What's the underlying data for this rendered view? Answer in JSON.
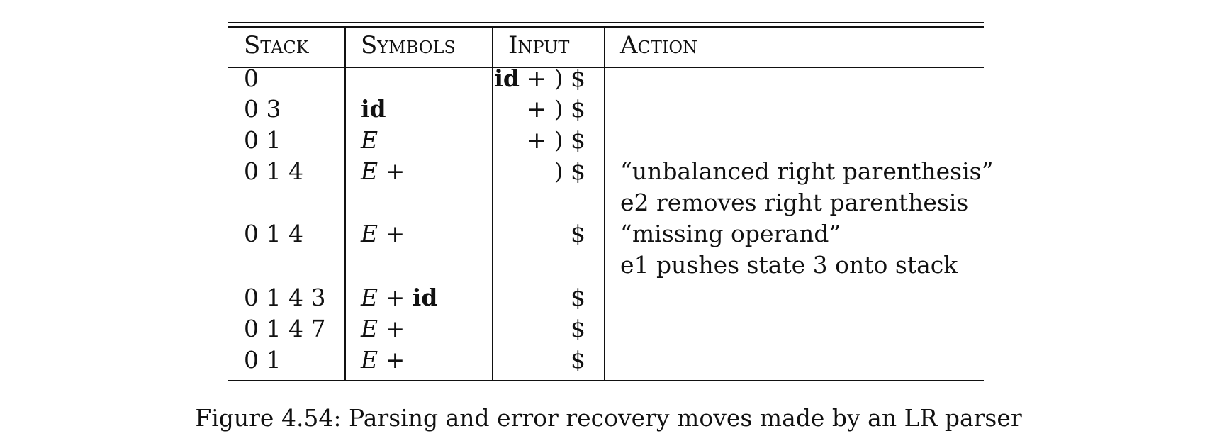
{
  "table": {
    "headers": {
      "stack": "Stack",
      "symbols": "Symbols",
      "input": "Input",
      "action": "Action"
    },
    "rows": [
      {
        "stack": "0",
        "symbols": [],
        "input": [
          {
            "t": "id",
            "b": true
          },
          {
            "t": " + ) $"
          }
        ],
        "action": ""
      },
      {
        "stack": "0 3",
        "symbols": [
          {
            "t": "id",
            "b": true
          }
        ],
        "input": [
          {
            "t": "+ ) $"
          }
        ],
        "action": ""
      },
      {
        "stack": "0 1",
        "symbols": [
          {
            "t": "E",
            "i": true
          }
        ],
        "input": [
          {
            "t": "+ ) $"
          }
        ],
        "action": ""
      },
      {
        "stack": "0 1 4",
        "symbols": [
          {
            "t": "E",
            "i": true
          },
          {
            "t": " +"
          }
        ],
        "input": [
          {
            "t": ") $"
          }
        ],
        "action": "“unbalanced right parenthesis”"
      },
      {
        "stack": "",
        "symbols": [],
        "input": [],
        "action": "e2 removes right parenthesis"
      },
      {
        "stack": "0 1 4",
        "symbols": [
          {
            "t": "E",
            "i": true
          },
          {
            "t": " +"
          }
        ],
        "input": [
          {
            "t": "$"
          }
        ],
        "action": "“missing operand”"
      },
      {
        "stack": "",
        "symbols": [],
        "input": [],
        "action": "e1 pushes state 3 onto stack"
      },
      {
        "stack": "0 1 4 3",
        "symbols": [
          {
            "t": "E",
            "i": true
          },
          {
            "t": " + "
          },
          {
            "t": "id",
            "b": true
          }
        ],
        "input": [
          {
            "t": "$"
          }
        ],
        "action": ""
      },
      {
        "stack": "0 1 4 7",
        "symbols": [
          {
            "t": "E",
            "i": true
          },
          {
            "t": " +"
          }
        ],
        "input": [
          {
            "t": "$"
          }
        ],
        "action": ""
      },
      {
        "stack": "0 1",
        "symbols": [
          {
            "t": "E",
            "i": true
          },
          {
            "t": " +"
          }
        ],
        "input": [
          {
            "t": "$"
          }
        ],
        "action": ""
      }
    ]
  },
  "caption": "Figure 4.54: Parsing and error recovery moves made by an LR parser"
}
